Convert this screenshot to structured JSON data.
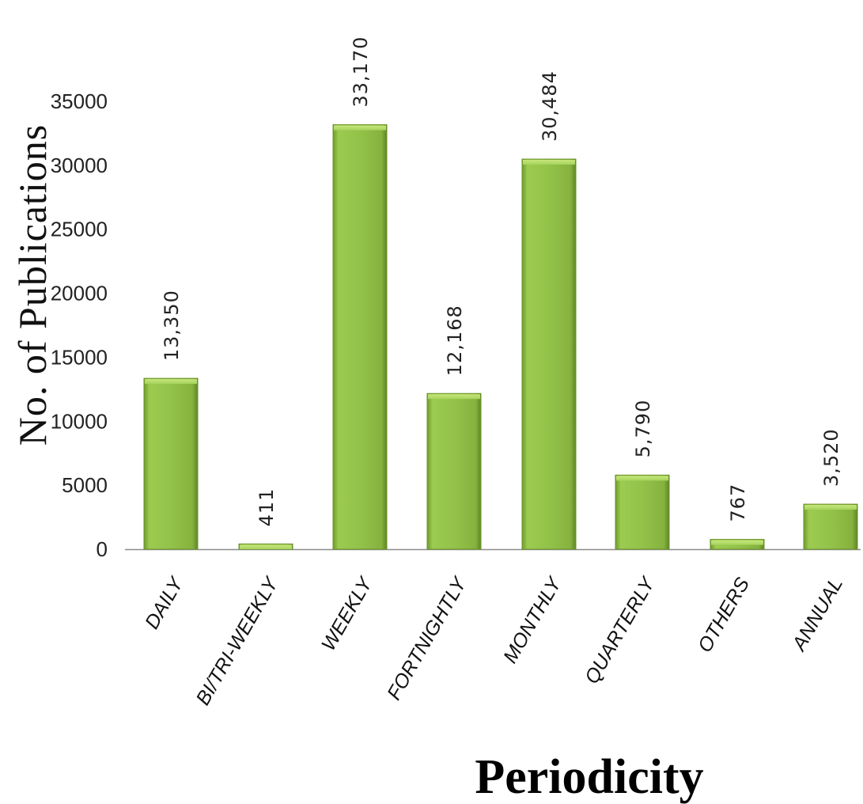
{
  "chart_data": {
    "type": "bar",
    "categories": [
      "DAILY",
      "BI/TRI-WEEKLY",
      "WEEKLY",
      "FORTNIGHTLY",
      "MONTHLY",
      "QUARTERLY",
      "OTHERS",
      "ANNUAL"
    ],
    "values": [
      13350,
      411,
      33170,
      12168,
      30484,
      5790,
      767,
      3520
    ],
    "data_labels": [
      "13,350",
      "411",
      "33,170",
      "12,168",
      "30,484",
      "5,790",
      "767",
      "3,520"
    ],
    "title": "",
    "xlabel": "Periodicity",
    "ylabel": "No. of Publications",
    "ylim": [
      0,
      35000
    ],
    "yticks": [
      0,
      5000,
      10000,
      15000,
      20000,
      25000,
      30000,
      35000
    ],
    "grid": false,
    "legend": "none",
    "bar_color": "#93c249"
  }
}
